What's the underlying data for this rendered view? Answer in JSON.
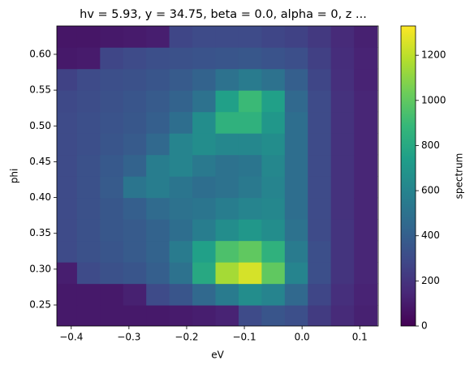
{
  "chart_data": {
    "type": "heatmap",
    "title": "hv = 5.93, y = 34.75, beta = 0.0, alpha = 0, z ...",
    "x_label": "eV",
    "y_label": "phi",
    "colorbar_label": "spectrum",
    "colormap": "viridis",
    "x": [
      -0.41,
      -0.37,
      -0.33,
      -0.29,
      -0.25,
      -0.21,
      -0.17,
      -0.13,
      -0.09,
      -0.05,
      -0.01,
      0.03,
      0.07,
      0.11
    ],
    "y": [
      0.235,
      0.265,
      0.295,
      0.325,
      0.355,
      0.385,
      0.415,
      0.445,
      0.475,
      0.505,
      0.535,
      0.565,
      0.595,
      0.625
    ],
    "z": [
      [
        90,
        90,
        90,
        90,
        90,
        100,
        110,
        130,
        300,
        350,
        320,
        230,
        160,
        120
      ],
      [
        90,
        90,
        90,
        120,
        300,
        350,
        450,
        550,
        650,
        600,
        450,
        280,
        180,
        130
      ],
      [
        110,
        300,
        330,
        350,
        400,
        500,
        800,
        1150,
        1250,
        1000,
        600,
        320,
        200,
        140
      ],
      [
        300,
        330,
        350,
        380,
        420,
        550,
        750,
        950,
        1000,
        850,
        550,
        320,
        200,
        140
      ],
      [
        300,
        330,
        360,
        380,
        420,
        480,
        560,
        650,
        700,
        650,
        500,
        300,
        200,
        140
      ],
      [
        300,
        330,
        360,
        400,
        460,
        500,
        520,
        560,
        600,
        620,
        480,
        300,
        190,
        140
      ],
      [
        300,
        330,
        380,
        520,
        560,
        520,
        480,
        500,
        540,
        600,
        480,
        300,
        190,
        140
      ],
      [
        300,
        330,
        370,
        420,
        560,
        600,
        540,
        500,
        520,
        620,
        480,
        300,
        190,
        140
      ],
      [
        300,
        320,
        350,
        380,
        450,
        600,
        650,
        620,
        620,
        650,
        480,
        300,
        190,
        140
      ],
      [
        300,
        320,
        340,
        360,
        400,
        480,
        650,
        850,
        850,
        700,
        480,
        300,
        190,
        140
      ],
      [
        290,
        310,
        330,
        350,
        380,
        420,
        500,
        750,
        900,
        750,
        450,
        300,
        190,
        140
      ],
      [
        260,
        300,
        320,
        330,
        350,
        380,
        420,
        500,
        550,
        500,
        400,
        280,
        180,
        130
      ],
      [
        90,
        100,
        280,
        300,
        320,
        330,
        340,
        350,
        360,
        340,
        320,
        250,
        170,
        130
      ],
      [
        80,
        80,
        90,
        100,
        110,
        280,
        300,
        300,
        300,
        280,
        260,
        220,
        160,
        120
      ]
    ],
    "xlim": [
      -0.425,
      0.132
    ],
    "ylim": [
      0.2206,
      0.6396
    ],
    "clim": [
      0,
      1330
    ],
    "xticks": [
      {
        "value": -0.4,
        "label": "−0.4"
      },
      {
        "value": -0.3,
        "label": "−0.3"
      },
      {
        "value": -0.2,
        "label": "−0.2"
      },
      {
        "value": -0.1,
        "label": "−0.1"
      },
      {
        "value": 0,
        "label": "0.0"
      },
      0.1
    ],
    "yticks": [
      0.25,
      {
        "value": 0.3,
        "label": "0.30"
      },
      0.35,
      {
        "value": 0.4,
        "label": "0.40"
      },
      0.45,
      {
        "value": 0.5,
        "label": "0.50"
      },
      0.55,
      {
        "value": 0.6,
        "label": "0.60"
      }
    ],
    "cticks": [
      0,
      200,
      400,
      600,
      800,
      1000,
      1200
    ]
  }
}
